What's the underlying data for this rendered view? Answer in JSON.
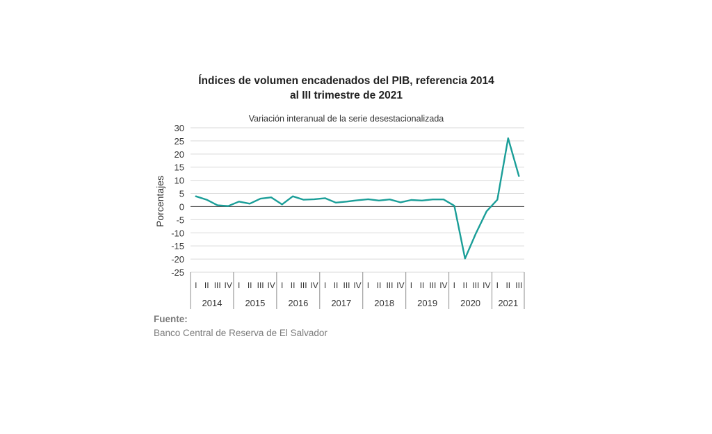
{
  "chart_data": {
    "type": "line",
    "title_lines": [
      "Índices de volumen encadenados del PIB, referencia 2014",
      "al III trimestre de 2021"
    ],
    "subtitle": "Variación interanual de la serie desestacionalizada",
    "ylabel": "Porcentajes",
    "xlabel": "",
    "ylim": [
      -25,
      30
    ],
    "yticks": [
      30,
      25,
      20,
      15,
      10,
      5,
      0,
      -5,
      -10,
      -15,
      -20,
      -25
    ],
    "grid": true,
    "line_color": "#1a9e98",
    "years": [
      {
        "label": "2014",
        "quarters": [
          "I",
          "II",
          "III",
          "IV"
        ]
      },
      {
        "label": "2015",
        "quarters": [
          "I",
          "II",
          "III",
          "IV"
        ]
      },
      {
        "label": "2016",
        "quarters": [
          "I",
          "II",
          "III",
          "IV"
        ]
      },
      {
        "label": "2017",
        "quarters": [
          "I",
          "II",
          "III",
          "IV"
        ]
      },
      {
        "label": "2018",
        "quarters": [
          "I",
          "II",
          "III",
          "IV"
        ]
      },
      {
        "label": "2019",
        "quarters": [
          "I",
          "II",
          "III",
          "IV"
        ]
      },
      {
        "label": "2020",
        "quarters": [
          "I",
          "II",
          "III",
          "IV"
        ]
      },
      {
        "label": "2021",
        "quarters": [
          "I",
          "II",
          "III"
        ]
      }
    ],
    "values": [
      3.9,
      2.6,
      0.5,
      0.2,
      1.9,
      1.1,
      3.0,
      3.5,
      0.8,
      3.9,
      2.6,
      2.8,
      3.2,
      1.5,
      1.9,
      2.4,
      2.8,
      2.3,
      2.7,
      1.6,
      2.5,
      2.3,
      2.7,
      2.7,
      0.3,
      -19.8,
      -10.3,
      -1.8,
      2.6,
      26.0,
      11.6
    ]
  },
  "source": {
    "label": "Fuente:",
    "text": "Banco Central de Reserva de El Salvador"
  }
}
